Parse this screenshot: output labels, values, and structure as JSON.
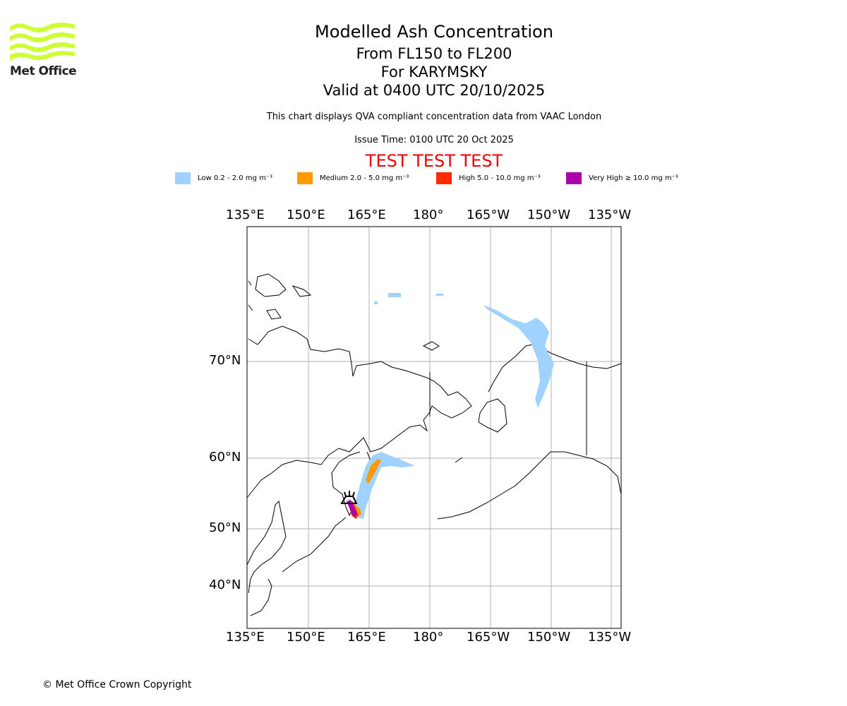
{
  "logo": {
    "text": "Met Office",
    "color": "#ccff33"
  },
  "title": {
    "line1": "Modelled Ash Concentration",
    "line2": "From FL150 to FL200",
    "line3": "For KARYMSKY",
    "line4": "Valid at 0400 UTC 20/10/2025"
  },
  "subtitle": "This chart displays QVA compliant concentration data from VAAC London",
  "issue_time": "Issue Time: 0100 UTC 20 Oct 2025",
  "test_banner": "TEST TEST TEST",
  "legend": [
    {
      "label": "Low 0.2 - 2.0 mg m⁻³",
      "color": "#a0d2ff"
    },
    {
      "label": "Medium 2.0 - 5.0 mg m⁻³",
      "color": "#ff9900"
    },
    {
      "label": "High 5.0 - 10.0 mg m⁻³",
      "color": "#ff2a00"
    },
    {
      "label": "Very High ≥ 10.0 mg m⁻³",
      "color": "#aa00aa"
    }
  ],
  "map": {
    "lon_ticks": [
      "135°E",
      "150°E",
      "165°E",
      "180°",
      "165°W",
      "150°W",
      "135°W"
    ],
    "lat_ticks": [
      "70°N",
      "60°N",
      "50°N",
      "40°N"
    ],
    "volcano_marker": "volcano-symbol"
  },
  "copyright": "© Met Office Crown Copyright"
}
